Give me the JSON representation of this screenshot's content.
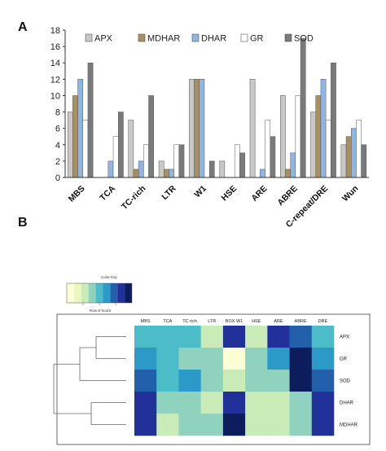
{
  "panel_a_label": "A",
  "panel_b_label": "B",
  "colors": {
    "APX": "#c8c8c8",
    "MDHAR": "#a89060",
    "DHAR": "#8fb5e4",
    "GR": "#ffffff",
    "SOD": "#7a7a7a"
  },
  "heatmap_palette": [
    "#ffffd6",
    "#eaf7bf",
    "#c8ebb8",
    "#8fd3be",
    "#4bbcc8",
    "#2b9ac8",
    "#2260ac",
    "#22309a",
    "#0c1c5c"
  ],
  "chart_data": [
    {
      "type": "bar",
      "categories": [
        "MBS",
        "TCA",
        "TC-rich",
        "LTR",
        "W1",
        "HSE",
        "ARE",
        "ABRE",
        "C-repeat/DRE",
        "Wun"
      ],
      "series": [
        {
          "name": "APX",
          "values": [
            8,
            0,
            7,
            2,
            12,
            2,
            12,
            10,
            8,
            4
          ]
        },
        {
          "name": "MDHAR",
          "values": [
            10,
            0,
            1,
            1,
            12,
            0,
            0,
            1,
            10,
            5
          ]
        },
        {
          "name": "DHAR",
          "values": [
            12,
            2,
            2,
            1,
            12,
            0,
            1,
            3,
            12,
            6
          ]
        },
        {
          "name": "GR",
          "values": [
            7,
            5,
            4,
            4,
            0,
            4,
            7,
            10,
            7,
            7
          ]
        },
        {
          "name": "SOD",
          "values": [
            14,
            8,
            10,
            4,
            2,
            3,
            5,
            17,
            14,
            4
          ]
        }
      ],
      "tick_label_extra": {
        "MBS": "",
        "TCA": "5"
      },
      "ylim": [
        0,
        18
      ],
      "yticks": [
        0,
        2,
        4,
        6,
        8,
        10,
        12,
        14,
        16,
        18
      ],
      "legend_position": "top",
      "grid": false
    },
    {
      "type": "heatmap",
      "color_key_title": "Color Key",
      "color_key_axis_label": "Row Z-Score",
      "columns": [
        "MBS",
        "TCA",
        "TC rich",
        "LTR",
        "BOX W1",
        "HSE",
        "ARE",
        "ABRE",
        "DRE"
      ],
      "rows": [
        "APX",
        "GR",
        "SOD",
        "DHAR",
        "MDHAR"
      ],
      "values": [
        [
          0.2,
          0.3,
          0.4,
          -0.8,
          1.8,
          -0.8,
          1.8,
          1.2,
          0.4
        ],
        [
          0.5,
          0.3,
          -0.2,
          -0.2,
          -1.6,
          -0.2,
          0.6,
          2.0,
          0.5
        ],
        [
          1.0,
          0.3,
          0.6,
          -0.5,
          -1.0,
          -0.5,
          -0.5,
          2.0,
          1.0
        ],
        [
          1.8,
          -0.2,
          -0.2,
          -0.6,
          1.8,
          -0.6,
          -0.6,
          -0.2,
          1.8
        ],
        [
          1.8,
          -0.6,
          -0.2,
          -0.2,
          2.2,
          -0.6,
          -0.6,
          -0.2,
          1.8
        ]
      ],
      "value_range": [
        -2,
        2.4
      ],
      "row_dendrogram": true
    }
  ]
}
